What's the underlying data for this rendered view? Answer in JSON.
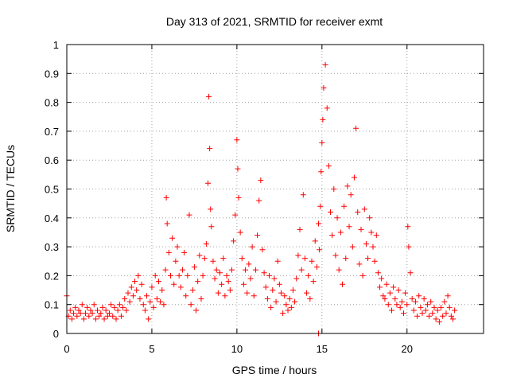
{
  "chart_data": {
    "type": "scatter",
    "title": "Day 313 of 2021, SRMTID for receiver exmt",
    "xlabel": "GPS time / hours",
    "ylabel": "SRMTID / TECUs",
    "xlim": [
      0,
      24.5
    ],
    "ylim": [
      0,
      1
    ],
    "xticks": [
      0,
      5,
      10,
      15,
      20
    ],
    "yticks": [
      0,
      0.1,
      0.2,
      0.3,
      0.4,
      0.5,
      0.6,
      0.7,
      0.8,
      0.9,
      1
    ],
    "grid": true,
    "marker": "+",
    "color": "#ff0000",
    "series": [
      {
        "name": "SRMTID",
        "x": [
          0.0,
          0.1,
          0.2,
          0.3,
          0.4,
          0.5,
          0.6,
          0.7,
          0.8,
          0.9,
          1.0,
          1.1,
          1.2,
          1.3,
          1.4,
          1.5,
          1.6,
          1.7,
          1.8,
          1.9,
          2.0,
          2.1,
          2.2,
          2.3,
          2.4,
          2.5,
          2.6,
          2.7,
          2.8,
          2.9,
          3.0,
          3.1,
          3.2,
          3.3,
          3.4,
          3.5,
          3.6,
          3.7,
          3.8,
          3.9,
          4.0,
          4.1,
          4.2,
          4.3,
          4.4,
          4.5,
          4.6,
          4.7,
          4.8,
          4.9,
          5.0,
          5.1,
          5.2,
          5.3,
          5.4,
          5.5,
          5.6,
          5.7,
          5.8,
          5.85,
          5.9,
          6.0,
          6.1,
          6.2,
          6.3,
          6.4,
          6.5,
          6.6,
          6.7,
          6.8,
          6.9,
          7.0,
          7.1,
          7.2,
          7.3,
          7.4,
          7.5,
          7.6,
          7.7,
          7.8,
          7.9,
          8.0,
          8.1,
          8.2,
          8.3,
          8.35,
          8.4,
          8.45,
          8.5,
          8.6,
          8.7,
          8.8,
          8.9,
          9.0,
          9.1,
          9.2,
          9.3,
          9.4,
          9.5,
          9.6,
          9.7,
          9.8,
          9.9,
          10.0,
          10.05,
          10.1,
          10.2,
          10.3,
          10.4,
          10.5,
          10.6,
          10.7,
          10.8,
          10.9,
          11.0,
          11.1,
          11.2,
          11.3,
          11.4,
          11.5,
          11.6,
          11.7,
          11.8,
          11.9,
          12.0,
          12.1,
          12.2,
          12.3,
          12.4,
          12.5,
          12.6,
          12.7,
          12.8,
          12.9,
          13.0,
          13.1,
          13.2,
          13.3,
          13.4,
          13.5,
          13.6,
          13.7,
          13.8,
          13.9,
          14.0,
          14.1,
          14.2,
          14.3,
          14.4,
          14.5,
          14.6,
          14.7,
          14.8,
          14.85,
          14.9,
          14.95,
          15.0,
          15.05,
          15.1,
          15.2,
          15.3,
          15.4,
          15.5,
          15.6,
          15.7,
          15.8,
          15.9,
          16.0,
          16.1,
          16.2,
          16.3,
          16.4,
          16.5,
          16.6,
          16.7,
          16.8,
          16.9,
          17.0,
          17.1,
          17.2,
          17.3,
          17.4,
          17.5,
          17.6,
          17.7,
          17.8,
          17.9,
          18.0,
          18.1,
          18.2,
          18.3,
          18.4,
          18.5,
          18.6,
          18.7,
          18.8,
          18.9,
          19.0,
          19.1,
          19.2,
          19.3,
          19.4,
          19.5,
          19.6,
          19.7,
          19.8,
          19.9,
          20.0,
          20.05,
          20.1,
          20.2,
          20.3,
          20.4,
          20.5,
          20.6,
          20.7,
          20.8,
          20.9,
          21.0,
          21.1,
          21.2,
          21.3,
          21.4,
          21.5,
          21.6,
          21.7,
          21.8,
          21.9,
          22.0,
          22.1,
          22.2,
          22.3,
          22.4,
          22.5,
          22.6,
          22.7,
          22.8,
          14.8
        ],
        "y": [
          0.13,
          0.06,
          0.08,
          0.05,
          0.07,
          0.09,
          0.06,
          0.08,
          0.07,
          0.1,
          0.05,
          0.07,
          0.09,
          0.06,
          0.08,
          0.07,
          0.1,
          0.05,
          0.08,
          0.06,
          0.07,
          0.09,
          0.05,
          0.08,
          0.06,
          0.07,
          0.1,
          0.06,
          0.09,
          0.05,
          0.08,
          0.1,
          0.06,
          0.09,
          0.12,
          0.08,
          0.14,
          0.11,
          0.16,
          0.13,
          0.18,
          0.15,
          0.2,
          0.12,
          0.17,
          0.1,
          0.08,
          0.13,
          0.05,
          0.11,
          0.16,
          0.09,
          0.2,
          0.12,
          0.18,
          0.11,
          0.15,
          0.1,
          0.22,
          0.47,
          0.38,
          0.28,
          0.2,
          0.33,
          0.17,
          0.25,
          0.3,
          0.2,
          0.16,
          0.22,
          0.28,
          0.13,
          0.2,
          0.41,
          0.1,
          0.15,
          0.23,
          0.08,
          0.18,
          0.27,
          0.12,
          0.2,
          0.26,
          0.31,
          0.52,
          0.82,
          0.64,
          0.43,
          0.37,
          0.25,
          0.19,
          0.22,
          0.14,
          0.21,
          0.17,
          0.26,
          0.13,
          0.2,
          0.18,
          0.15,
          0.22,
          0.32,
          0.41,
          0.67,
          0.57,
          0.47,
          0.35,
          0.26,
          0.17,
          0.22,
          0.14,
          0.24,
          0.19,
          0.3,
          0.13,
          0.22,
          0.34,
          0.46,
          0.53,
          0.29,
          0.21,
          0.16,
          0.12,
          0.2,
          0.09,
          0.15,
          0.19,
          0.11,
          0.25,
          0.17,
          0.14,
          0.07,
          0.13,
          0.1,
          0.08,
          0.12,
          0.09,
          0.15,
          0.11,
          0.19,
          0.27,
          0.36,
          0.22,
          0.48,
          0.26,
          0.14,
          0.2,
          0.12,
          0.25,
          0.18,
          0.32,
          0.23,
          0.38,
          0.29,
          0.44,
          0.56,
          0.66,
          0.74,
          0.85,
          0.93,
          0.78,
          0.58,
          0.42,
          0.34,
          0.5,
          0.27,
          0.4,
          0.22,
          0.35,
          0.17,
          0.44,
          0.26,
          0.51,
          0.37,
          0.48,
          0.3,
          0.54,
          0.71,
          0.42,
          0.24,
          0.36,
          0.2,
          0.43,
          0.31,
          0.26,
          0.4,
          0.35,
          0.3,
          0.25,
          0.34,
          0.21,
          0.16,
          0.19,
          0.13,
          0.12,
          0.17,
          0.1,
          0.14,
          0.08,
          0.16,
          0.12,
          0.1,
          0.15,
          0.09,
          0.11,
          0.07,
          0.14,
          0.1,
          0.37,
          0.3,
          0.21,
          0.12,
          0.08,
          0.11,
          0.06,
          0.13,
          0.09,
          0.07,
          0.12,
          0.08,
          0.1,
          0.06,
          0.11,
          0.07,
          0.09,
          0.05,
          0.08,
          0.04,
          0.09,
          0.06,
          0.11,
          0.07,
          0.13,
          0.09,
          0.06,
          0.05,
          0.08,
          0.0
        ]
      }
    ]
  }
}
